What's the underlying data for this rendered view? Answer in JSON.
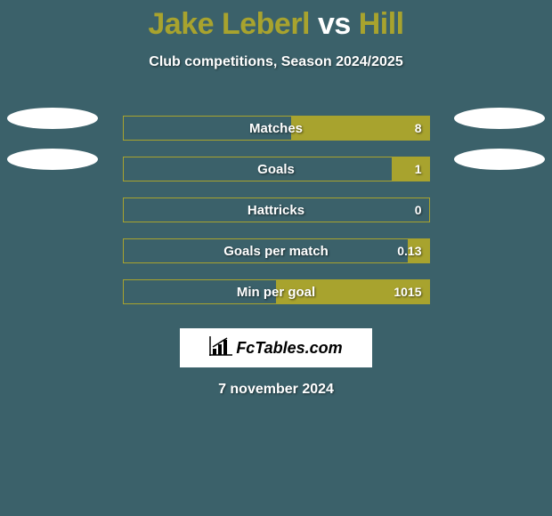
{
  "background_color": "#3b616a",
  "title": {
    "player1": "Jake Leberl",
    "vs": " vs ",
    "player2": "Hill",
    "player1_color": "#a8a32e",
    "player2_color": "#a8a32e",
    "vs_color": "#ffffff"
  },
  "subtitle": "Club competitions, Season 2024/2025",
  "bar_styling": {
    "track_width": 345,
    "track_height": 28,
    "border_color": "#a8a32e",
    "fill_color": "#a8a32e",
    "label_fontsize": 15,
    "value_fontsize": 14
  },
  "ellipse_styling": {
    "width": 102,
    "height": 24,
    "background": "#ffffff"
  },
  "rows": [
    {
      "label": "Matches",
      "left_val": "",
      "right_val": "8",
      "left_fill_pct": 0,
      "right_fill_pct": 45,
      "show_left_ellipse": true,
      "show_right_ellipse": true
    },
    {
      "label": "Goals",
      "left_val": "",
      "right_val": "1",
      "left_fill_pct": 0,
      "right_fill_pct": 12,
      "show_left_ellipse": true,
      "show_right_ellipse": true
    },
    {
      "label": "Hattricks",
      "left_val": "",
      "right_val": "0",
      "left_fill_pct": 0,
      "right_fill_pct": 0,
      "show_left_ellipse": false,
      "show_right_ellipse": false
    },
    {
      "label": "Goals per match",
      "left_val": "",
      "right_val": "0.13",
      "left_fill_pct": 0,
      "right_fill_pct": 7,
      "show_left_ellipse": false,
      "show_right_ellipse": false
    },
    {
      "label": "Min per goal",
      "left_val": "",
      "right_val": "1015",
      "left_fill_pct": 0,
      "right_fill_pct": 50,
      "show_left_ellipse": false,
      "show_right_ellipse": false
    }
  ],
  "logo": {
    "text": "FcTables.com",
    "icon_name": "bar-chart-icon",
    "box_bg": "#ffffff",
    "text_color": "#000000"
  },
  "date": "7 november 2024"
}
